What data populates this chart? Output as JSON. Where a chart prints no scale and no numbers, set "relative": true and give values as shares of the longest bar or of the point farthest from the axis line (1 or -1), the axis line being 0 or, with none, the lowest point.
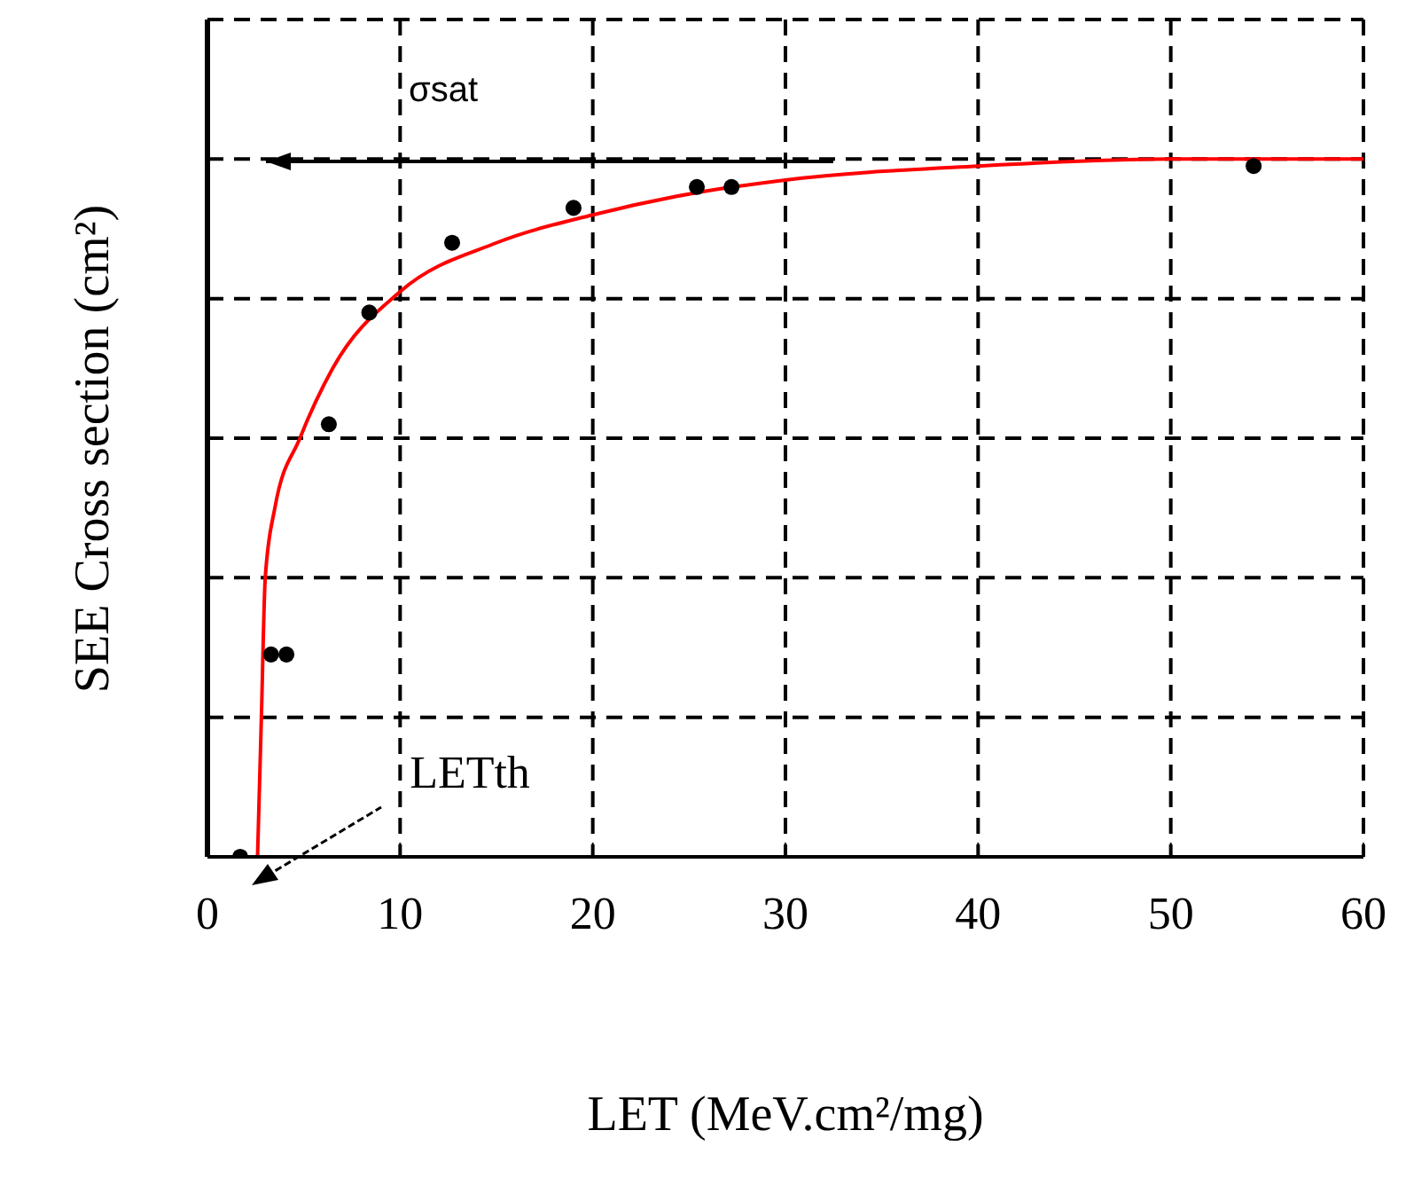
{
  "chart_data": {
    "type": "scatter",
    "relative": true,
    "xlabel": "LET (MeV.cm²/mg)",
    "ylabel": "SEE Cross section (cm²)",
    "xlim": [
      0,
      60
    ],
    "xticks": [
      0,
      10,
      20,
      30,
      40,
      50,
      60
    ],
    "grid": true,
    "legend": false,
    "marker": "circle",
    "series": [
      {
        "color": "#000000",
        "x": [
          1.7,
          3.3,
          4.1,
          6.3,
          8.4,
          12.7,
          19.0,
          25.4,
          27.2,
          54.3
        ],
        "values": [
          0,
          0.29,
          0.29,
          0.62,
          0.78,
          0.88,
          0.93,
          0.96,
          0.96,
          0.99
        ]
      },
      {
        "type": "line",
        "color": "#ff0000",
        "marker": "none",
        "line_style": "solid",
        "x": [
          2.6,
          2.7,
          2.8,
          3.0,
          3.5,
          4.8,
          6.5,
          10,
          15,
          20,
          25,
          30,
          40,
          50,
          60
        ],
        "values": [
          0,
          0.1,
          0.2,
          0.4,
          0.5,
          0.6,
          0.7,
          0.81,
          0.88,
          0.92,
          0.95,
          0.97,
          0.99,
          1,
          1
        ]
      }
    ],
    "annotations": [
      "σsat",
      "LETth"
    ]
  }
}
